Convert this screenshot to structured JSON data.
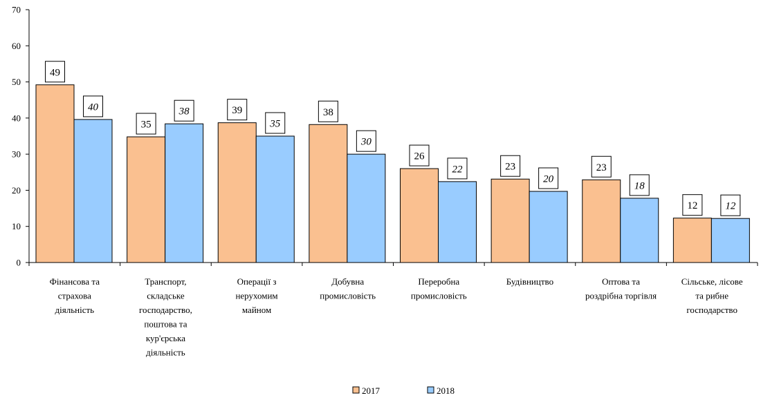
{
  "chart_data": {
    "type": "bar",
    "title": "",
    "xlabel": "",
    "ylabel": "",
    "ylim": [
      0,
      70
    ],
    "yticks": [
      0,
      10,
      20,
      30,
      40,
      50,
      60,
      70
    ],
    "grid": false,
    "legend_position": "bottom",
    "categories": [
      [
        "Фінансова та",
        "страхова",
        "діяльність"
      ],
      [
        "Транспорт,",
        "складське",
        "господарство,",
        "поштова та",
        "кур'єрська",
        "діяльність"
      ],
      [
        "Операції з",
        "нерухомим",
        "майном"
      ],
      [
        "Добувна",
        "промисловість"
      ],
      [
        "Переробна",
        "промисловість"
      ],
      [
        "Будівництво"
      ],
      [
        "Оптова та",
        "роздрібна торгівля"
      ],
      [
        "Сільське, лісове",
        "та рибне",
        "господарство"
      ]
    ],
    "series": [
      {
        "name": "2017",
        "color": "#FAC090",
        "values": [
          49.2,
          34.8,
          38.7,
          38.2,
          26.0,
          23.1,
          22.9,
          12.3
        ],
        "labels": [
          "49",
          "35",
          "39",
          "38",
          "26",
          "23",
          "23",
          "12"
        ]
      },
      {
        "name": "2018",
        "color": "#99CCFF",
        "values": [
          39.6,
          38.4,
          35.0,
          30.0,
          22.4,
          19.7,
          17.8,
          12.2
        ],
        "labels": [
          "40",
          "38",
          "35",
          "30",
          "22",
          "20",
          "18",
          "12"
        ]
      }
    ]
  }
}
